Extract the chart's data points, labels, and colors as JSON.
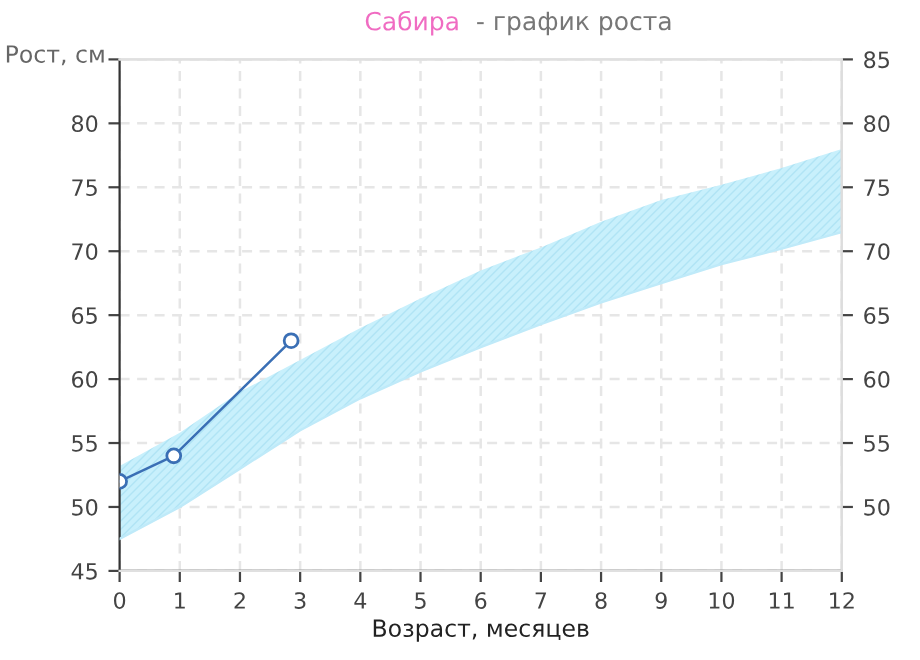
{
  "chart_data": {
    "type": "area",
    "title": "Сабира - график роста",
    "xlabel": "Возраст, месяцев",
    "ylabel": "Рост, см",
    "series": [
      {
        "type": "line",
        "marker": "none",
        "color": "#bfeaf9",
        "x": [
          0,
          1,
          2,
          3,
          4,
          5,
          6,
          7,
          8,
          9,
          10,
          11,
          12
        ],
        "values": [
          47.5,
          50,
          53,
          56,
          58.5,
          60.6,
          62.5,
          64.3,
          66,
          67.5,
          69,
          70.2,
          71.5
        ]
      },
      {
        "marker": "none",
        "color": "#c8f0fc",
        "x": [
          0,
          1,
          2,
          3,
          4,
          5,
          6,
          7,
          8,
          9,
          10,
          11,
          12
        ],
        "values": [
          53.2,
          55.8,
          59,
          61.5,
          64,
          66.3,
          68.5,
          70.3,
          72.3,
          74,
          75.2,
          76.5,
          78
        ]
      },
      {
        "type": "line",
        "marker": "circle",
        "color": "#3a6fb5",
        "x": [
          0,
          0.9,
          2.85
        ],
        "values": [
          52,
          54,
          63
        ]
      }
    ],
    "xlim": [
      0,
      12
    ],
    "xticks": [
      0,
      1,
      2,
      3,
      4,
      5,
      6,
      7,
      8,
      9,
      10,
      11,
      12
    ],
    "ylim": [
      45,
      85
    ],
    "yticks": [
      45,
      50,
      55,
      60,
      65,
      70,
      75,
      80,
      {
        "value": 85,
        "label": null
      }
    ],
    "y2lim": [
      45,
      85
    ],
    "y2ticks": [
      50,
      55,
      60,
      65,
      70,
      75,
      80,
      85
    ],
    "grid": true,
    "line_style": "solid"
  }
}
